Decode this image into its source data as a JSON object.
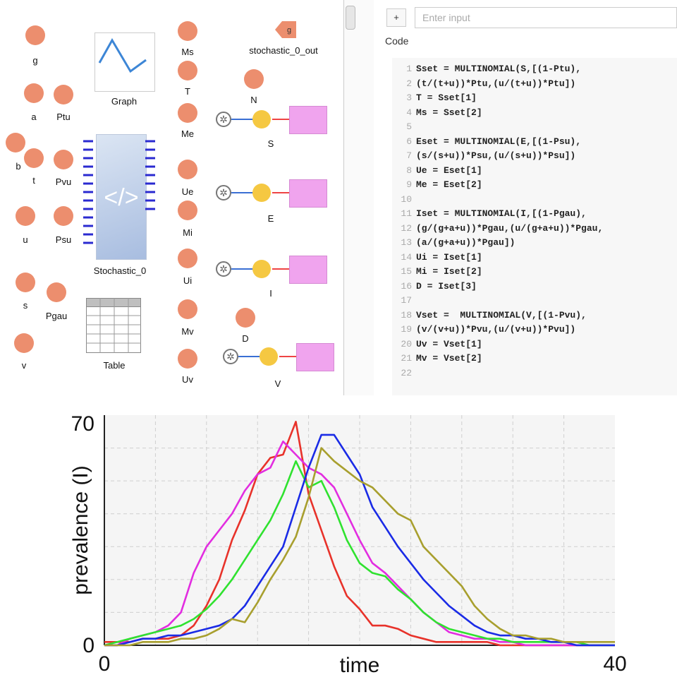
{
  "canvas": {
    "nodes": [
      "g",
      "a",
      "Ptu",
      "b",
      "t",
      "Pvu",
      "u",
      "Psu",
      "s",
      "Pgau",
      "v",
      "Ms",
      "T",
      "Me",
      "Ue",
      "Mi",
      "Ui",
      "Mv",
      "Uv",
      "N",
      "D"
    ],
    "graph_label": "Graph",
    "stochastic_label": "Stochastic_0",
    "table_label": "Table",
    "out_label": "stochastic_0_out",
    "out_badge": "g",
    "stocks": [
      "S",
      "E",
      "I",
      "V"
    ]
  },
  "panel": {
    "add_label": "+",
    "input_placeholder": "Enter input",
    "code_label": "Code",
    "code_lines": [
      "Sset = MULTINOMIAL(S,[(1-Ptu),",
      "(t/(t+u))*Ptu,(u/(t+u))*Ptu])",
      "T = Sset[1]",
      "Ms = Sset[2]",
      "",
      "Eset = MULTINOMIAL(E,[(1-Psu),",
      "(s/(s+u))*Psu,(u/(s+u))*Psu])",
      "Ue = Eset[1]",
      "Me = Eset[2]",
      "",
      "Iset = MULTINOMIAL(I,[(1-Pgau),",
      "(g/(g+a+u))*Pgau,(u/(g+a+u))*Pgau,",
      "(a/(g+a+u))*Pgau])",
      "Ui = Iset[1]",
      "Mi = Iset[2]",
      "D = Iset[3]",
      "",
      "Vset =  MULTINOMIAL(V,[(1-Pvu),",
      "(v/(v+u))*Pvu,(u/(v+u))*Pvu])",
      "Uv = Vset[1]",
      "Mv = Vset[2]",
      ""
    ]
  },
  "chart_data": {
    "type": "line",
    "xlabel": "time",
    "ylabel": "prevalence (I)",
    "xlim": [
      0,
      40
    ],
    "ylim": [
      0,
      70
    ],
    "x_ticks": [
      "0",
      "40"
    ],
    "y_ticks": [
      "0",
      "70"
    ],
    "grid": true,
    "x": [
      0,
      1,
      2,
      3,
      4,
      5,
      6,
      7,
      8,
      9,
      10,
      11,
      12,
      13,
      14,
      15,
      16,
      17,
      18,
      19,
      20,
      21,
      22,
      23,
      24,
      25,
      26,
      27,
      28,
      29,
      30,
      31,
      32,
      33,
      34,
      35,
      36,
      37,
      38,
      39,
      40
    ],
    "series": [
      {
        "color": "#e8322a",
        "values": [
          1,
          1,
          1,
          2,
          2,
          2,
          3,
          6,
          12,
          20,
          32,
          41,
          52,
          57,
          58,
          68,
          46,
          35,
          24,
          15,
          11,
          6,
          6,
          5,
          3,
          2,
          1,
          1,
          1,
          1,
          1,
          0,
          0,
          0,
          0,
          0,
          0,
          0,
          0,
          0,
          0
        ]
      },
      {
        "color": "#e22de0",
        "values": [
          0,
          0,
          2,
          3,
          4,
          6,
          10,
          22,
          30,
          35,
          40,
          47,
          52,
          54,
          62,
          58,
          54,
          52,
          48,
          40,
          32,
          25,
          22,
          18,
          14,
          10,
          7,
          4,
          3,
          2,
          2,
          1,
          1,
          0,
          0,
          0,
          0,
          0,
          0,
          0,
          0
        ]
      },
      {
        "color": "#2fe22f",
        "values": [
          0,
          1,
          2,
          3,
          4,
          5,
          6,
          8,
          11,
          15,
          20,
          26,
          32,
          38,
          46,
          56,
          48,
          50,
          42,
          32,
          25,
          22,
          21,
          17,
          14,
          10,
          7,
          5,
          4,
          3,
          2,
          2,
          1,
          1,
          1,
          1,
          1,
          1,
          0,
          0,
          0
        ]
      },
      {
        "color": "#1a2be6",
        "values": [
          0,
          0,
          1,
          2,
          2,
          3,
          3,
          4,
          5,
          6,
          8,
          12,
          18,
          24,
          30,
          42,
          54,
          64,
          64,
          58,
          52,
          42,
          36,
          30,
          25,
          20,
          16,
          12,
          9,
          6,
          4,
          3,
          3,
          2,
          2,
          1,
          1,
          0,
          0,
          0,
          0
        ]
      },
      {
        "color": "#a89f2e",
        "values": [
          0,
          0,
          0,
          1,
          1,
          1,
          2,
          2,
          3,
          5,
          8,
          7,
          13,
          20,
          26,
          33,
          45,
          60,
          56,
          53,
          50,
          48,
          44,
          40,
          38,
          30,
          26,
          22,
          18,
          12,
          8,
          5,
          3,
          3,
          2,
          2,
          1,
          1,
          1,
          1,
          1
        ]
      }
    ]
  }
}
